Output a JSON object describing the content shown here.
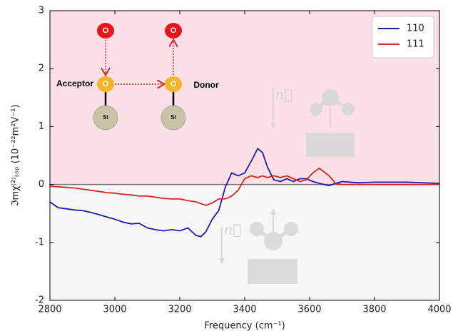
{
  "chart_data": {
    "type": "line",
    "xlabel": "Frequency (cm⁻¹)",
    "ylabel": "ℑmχ⁽²⁾ₛₛₚ (10⁻²²m²V⁻¹)",
    "x": [
      2800,
      2825,
      2850,
      2875,
      2900,
      2925,
      2950,
      2975,
      3000,
      3025,
      3050,
      3075,
      3100,
      3125,
      3150,
      3175,
      3200,
      3225,
      3250,
      3265,
      3280,
      3300,
      3320,
      3340,
      3360,
      3380,
      3400,
      3420,
      3440,
      3455,
      3470,
      3490,
      3510,
      3530,
      3550,
      3570,
      3590,
      3610,
      3630,
      3660,
      3680,
      3700,
      3750,
      3800,
      3900,
      4000
    ],
    "series": [
      {
        "name": "110",
        "color": "#1c1cae",
        "values": [
          -0.3,
          -0.4,
          -0.42,
          -0.44,
          -0.45,
          -0.48,
          -0.52,
          -0.56,
          -0.6,
          -0.65,
          -0.68,
          -0.67,
          -0.75,
          -0.78,
          -0.8,
          -0.78,
          -0.8,
          -0.75,
          -0.88,
          -0.9,
          -0.82,
          -0.6,
          -0.45,
          -0.05,
          0.2,
          0.15,
          0.2,
          0.4,
          0.62,
          0.55,
          0.3,
          0.08,
          0.05,
          0.1,
          0.05,
          0.1,
          0.1,
          0.05,
          0.02,
          -0.02,
          0.02,
          0.05,
          0.03,
          0.04,
          0.04,
          0.02
        ]
      },
      {
        "name": "111",
        "color": "#d32626",
        "values": [
          -0.03,
          -0.04,
          -0.05,
          -0.06,
          -0.08,
          -0.1,
          -0.12,
          -0.14,
          -0.15,
          -0.17,
          -0.18,
          -0.2,
          -0.2,
          -0.22,
          -0.24,
          -0.25,
          -0.25,
          -0.28,
          -0.3,
          -0.33,
          -0.36,
          -0.32,
          -0.25,
          -0.25,
          -0.2,
          -0.1,
          0.1,
          0.15,
          0.12,
          0.15,
          0.12,
          0.15,
          0.12,
          0.15,
          0.1,
          0.05,
          0.08,
          0.2,
          0.28,
          0.15,
          0.02,
          0.0,
          0.0,
          0.0,
          0.0,
          0.0
        ]
      }
    ],
    "xlim": [
      2800,
      4000
    ],
    "xticks": [
      2800,
      3000,
      3200,
      3400,
      3600,
      3800,
      4000
    ],
    "ylim": [
      -2,
      3
    ],
    "yticks": [
      -2,
      -1,
      0,
      1,
      2,
      3
    ],
    "grid": false,
    "legend": "upper right",
    "fill_above": "#fde0e6",
    "fill_below": "#f7f7f7",
    "annotations": [
      "O",
      "O",
      "O",
      "O",
      "Si",
      "Si",
      "Acceptor",
      "Donor",
      "n⃗",
      "n⃗"
    ]
  }
}
